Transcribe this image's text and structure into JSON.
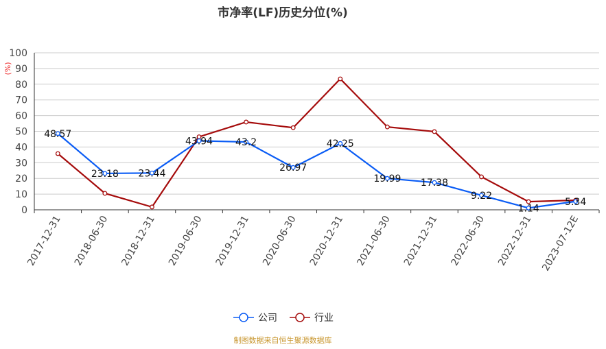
{
  "chart_data": {
    "type": "line",
    "title": "市净率(LF)历史分位(%)",
    "ylabel": "(%)",
    "ylim": [
      0,
      100
    ],
    "yticks": [
      0,
      10,
      20,
      30,
      40,
      50,
      60,
      70,
      80,
      90,
      100
    ],
    "grid": true,
    "legend_position": "bottom",
    "categories": [
      "2017-12-31",
      "2018-06-30",
      "2018-12-31",
      "2019-06-30",
      "2019-12-31",
      "2020-06-30",
      "2020-12-31",
      "2021-06-30",
      "2021-12-31",
      "2022-06-30",
      "2022-12-31",
      "2023-07-12E"
    ],
    "series": [
      {
        "name": "公司",
        "color": "#0a5cf5",
        "labels": true,
        "values": [
          48.57,
          23.18,
          23.44,
          43.94,
          43.2,
          26.97,
          42.25,
          19.99,
          17.38,
          9.22,
          1.14,
          5.34
        ]
      },
      {
        "name": "行业",
        "color": "#a50b0b",
        "labels": false,
        "values": [
          35.8,
          10.5,
          1.8,
          46.5,
          55.9,
          52.3,
          83.4,
          52.8,
          49.8,
          21.0,
          5.2,
          6.1
        ]
      }
    ],
    "source": "制图数据来自恒生聚源数据库"
  }
}
